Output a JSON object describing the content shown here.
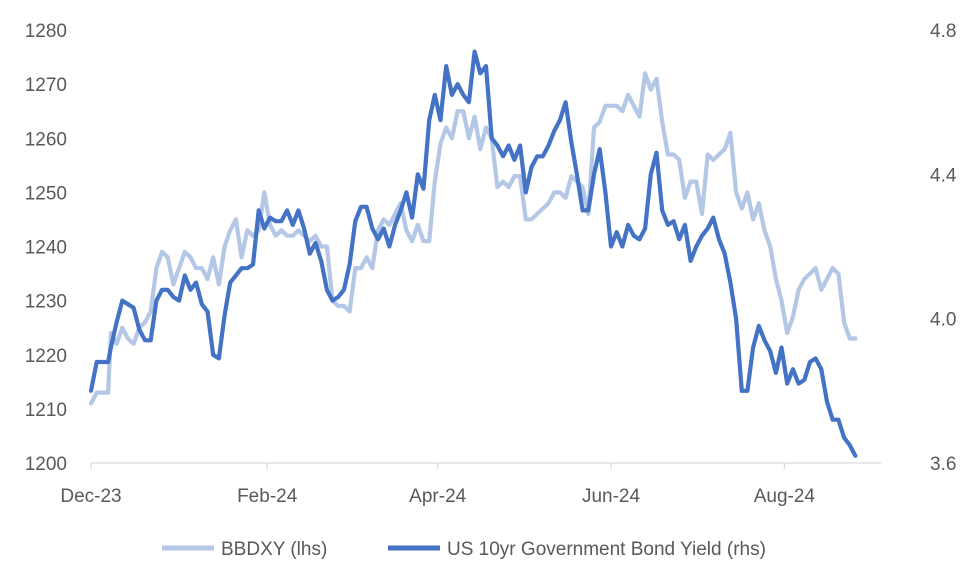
{
  "chart_data": {
    "type": "line",
    "y_left": {
      "min": 1200,
      "max": 1280,
      "ticks": [
        1200,
        1210,
        1220,
        1230,
        1240,
        1250,
        1260,
        1270,
        1280
      ],
      "labels": [
        "1200",
        "1210",
        "1220",
        "1230",
        "1240",
        "1250",
        "1260",
        "1270",
        "1280"
      ]
    },
    "y_right": {
      "min": 3.6,
      "max": 4.8,
      "ticks": [
        3.6,
        4.0,
        4.4,
        4.8
      ],
      "labels": [
        "3.6",
        "4.0",
        "4.4",
        "4.8"
      ]
    },
    "x_axis": {
      "start": "2023-12-01",
      "end": "2024-09-04",
      "ticks": [
        "2023-12-01",
        "2024-02-01",
        "2024-04-01",
        "2024-06-01",
        "2024-08-01"
      ],
      "labels": [
        "Dec-23",
        "Feb-24",
        "Apr-24",
        "Jun-24",
        "Aug-24"
      ]
    },
    "grid": false,
    "legend_position": "bottom",
    "series": [
      {
        "name": "BBDXY (lhs)",
        "axis": "left",
        "color": "#B4C7E7",
        "points": [
          [
            "2023-12-01",
            1211
          ],
          [
            "2023-12-03",
            1213
          ],
          [
            "2023-12-05",
            1213
          ],
          [
            "2023-12-07",
            1213
          ],
          [
            "2023-12-08",
            1224
          ],
          [
            "2023-12-10",
            1222
          ],
          [
            "2023-12-12",
            1225
          ],
          [
            "2023-12-14",
            1223
          ],
          [
            "2023-12-16",
            1222
          ],
          [
            "2023-12-18",
            1225
          ],
          [
            "2023-12-20",
            1226
          ],
          [
            "2023-12-22",
            1228
          ],
          [
            "2023-12-24",
            1236
          ],
          [
            "2023-12-26",
            1239
          ],
          [
            "2023-12-28",
            1238
          ],
          [
            "2023-12-30",
            1233
          ],
          [
            "2024-01-01",
            1236
          ],
          [
            "2024-01-03",
            1239
          ],
          [
            "2024-01-05",
            1238
          ],
          [
            "2024-01-07",
            1236
          ],
          [
            "2024-01-09",
            1236
          ],
          [
            "2024-01-11",
            1234
          ],
          [
            "2024-01-13",
            1238
          ],
          [
            "2024-01-15",
            1233
          ],
          [
            "2024-01-17",
            1240
          ],
          [
            "2024-01-19",
            1243
          ],
          [
            "2024-01-21",
            1245
          ],
          [
            "2024-01-23",
            1238
          ],
          [
            "2024-01-25",
            1243
          ],
          [
            "2024-01-27",
            1242
          ],
          [
            "2024-01-29",
            1243
          ],
          [
            "2024-01-31",
            1250
          ],
          [
            "2024-02-02",
            1244
          ],
          [
            "2024-02-04",
            1242
          ],
          [
            "2024-02-06",
            1243
          ],
          [
            "2024-02-08",
            1242
          ],
          [
            "2024-02-10",
            1242
          ],
          [
            "2024-02-12",
            1243
          ],
          [
            "2024-02-14",
            1242
          ],
          [
            "2024-02-16",
            1241
          ],
          [
            "2024-02-18",
            1242
          ],
          [
            "2024-02-20",
            1240
          ],
          [
            "2024-02-22",
            1240
          ],
          [
            "2024-02-24",
            1230
          ],
          [
            "2024-02-26",
            1229
          ],
          [
            "2024-02-28",
            1229
          ],
          [
            "2024-03-01",
            1228
          ],
          [
            "2024-03-03",
            1236
          ],
          [
            "2024-03-05",
            1236
          ],
          [
            "2024-03-07",
            1238
          ],
          [
            "2024-03-09",
            1236
          ],
          [
            "2024-03-11",
            1243
          ],
          [
            "2024-03-13",
            1245
          ],
          [
            "2024-03-15",
            1244
          ],
          [
            "2024-03-17",
            1246
          ],
          [
            "2024-03-19",
            1248
          ],
          [
            "2024-03-21",
            1243
          ],
          [
            "2024-03-23",
            1241
          ],
          [
            "2024-03-25",
            1244
          ],
          [
            "2024-03-27",
            1241
          ],
          [
            "2024-03-29",
            1241
          ],
          [
            "2024-03-31",
            1252
          ],
          [
            "2024-04-02",
            1259
          ],
          [
            "2024-04-04",
            1262
          ],
          [
            "2024-04-06",
            1260
          ],
          [
            "2024-04-08",
            1265
          ],
          [
            "2024-04-10",
            1265
          ],
          [
            "2024-04-12",
            1260
          ],
          [
            "2024-04-14",
            1264
          ],
          [
            "2024-04-16",
            1258
          ],
          [
            "2024-04-18",
            1262
          ],
          [
            "2024-04-20",
            1260
          ],
          [
            "2024-04-22",
            1251
          ],
          [
            "2024-04-24",
            1252
          ],
          [
            "2024-04-26",
            1251
          ],
          [
            "2024-04-28",
            1253
          ],
          [
            "2024-04-30",
            1253
          ],
          [
            "2024-05-02",
            1245
          ],
          [
            "2024-05-04",
            1245
          ],
          [
            "2024-05-06",
            1246
          ],
          [
            "2024-05-08",
            1247
          ],
          [
            "2024-05-10",
            1248
          ],
          [
            "2024-05-12",
            1250
          ],
          [
            "2024-05-14",
            1250
          ],
          [
            "2024-05-16",
            1249
          ],
          [
            "2024-05-18",
            1253
          ],
          [
            "2024-05-20",
            1252
          ],
          [
            "2024-05-22",
            1251
          ],
          [
            "2024-05-24",
            1246
          ],
          [
            "2024-05-26",
            1262
          ],
          [
            "2024-05-28",
            1263
          ],
          [
            "2024-05-30",
            1266
          ],
          [
            "2024-06-01",
            1266
          ],
          [
            "2024-06-03",
            1266
          ],
          [
            "2024-06-05",
            1265
          ],
          [
            "2024-06-07",
            1268
          ],
          [
            "2024-06-09",
            1266
          ],
          [
            "2024-06-11",
            1264
          ],
          [
            "2024-06-13",
            1272
          ],
          [
            "2024-06-15",
            1269
          ],
          [
            "2024-06-17",
            1271
          ],
          [
            "2024-06-19",
            1263
          ],
          [
            "2024-06-21",
            1257
          ],
          [
            "2024-06-23",
            1257
          ],
          [
            "2024-06-25",
            1256
          ],
          [
            "2024-06-27",
            1249
          ],
          [
            "2024-06-29",
            1252
          ],
          [
            "2024-07-01",
            1252
          ],
          [
            "2024-07-03",
            1246
          ],
          [
            "2024-07-05",
            1257
          ],
          [
            "2024-07-07",
            1256
          ],
          [
            "2024-07-09",
            1257
          ],
          [
            "2024-07-11",
            1258
          ],
          [
            "2024-07-13",
            1261
          ],
          [
            "2024-07-15",
            1250
          ],
          [
            "2024-07-17",
            1247
          ],
          [
            "2024-07-19",
            1250
          ],
          [
            "2024-07-21",
            1245
          ],
          [
            "2024-07-23",
            1248
          ],
          [
            "2024-07-25",
            1243
          ],
          [
            "2024-07-27",
            1240
          ],
          [
            "2024-07-29",
            1234
          ],
          [
            "2024-07-31",
            1230
          ],
          [
            "2024-08-02",
            1224
          ],
          [
            "2024-08-04",
            1227
          ],
          [
            "2024-08-06",
            1232
          ],
          [
            "2024-08-08",
            1234
          ],
          [
            "2024-08-10",
            1235
          ],
          [
            "2024-08-12",
            1236
          ],
          [
            "2024-08-14",
            1232
          ],
          [
            "2024-08-16",
            1234
          ],
          [
            "2024-08-18",
            1236
          ],
          [
            "2024-08-20",
            1235
          ],
          [
            "2024-08-22",
            1226
          ],
          [
            "2024-08-24",
            1223
          ],
          [
            "2024-08-26",
            1223
          ]
        ]
      },
      {
        "name": "US 10yr Government Bond Yield (rhs)",
        "axis": "right",
        "color": "#4472C4",
        "points": [
          [
            "2023-12-01",
            3.8
          ],
          [
            "2023-12-03",
            3.88
          ],
          [
            "2023-12-05",
            3.88
          ],
          [
            "2023-12-07",
            3.88
          ],
          [
            "2023-12-08",
            3.92
          ],
          [
            "2023-12-10",
            3.99
          ],
          [
            "2023-12-12",
            4.05
          ],
          [
            "2023-12-14",
            4.04
          ],
          [
            "2023-12-16",
            4.03
          ],
          [
            "2023-12-18",
            3.97
          ],
          [
            "2023-12-20",
            3.94
          ],
          [
            "2023-12-22",
            3.94
          ],
          [
            "2023-12-24",
            4.05
          ],
          [
            "2023-12-26",
            4.08
          ],
          [
            "2023-12-28",
            4.08
          ],
          [
            "2023-12-30",
            4.06
          ],
          [
            "2024-01-01",
            4.05
          ],
          [
            "2024-01-03",
            4.12
          ],
          [
            "2024-01-05",
            4.08
          ],
          [
            "2024-01-07",
            4.1
          ],
          [
            "2024-01-09",
            4.04
          ],
          [
            "2024-01-11",
            4.02
          ],
          [
            "2024-01-13",
            3.9
          ],
          [
            "2024-01-15",
            3.89
          ],
          [
            "2024-01-17",
            4.01
          ],
          [
            "2024-01-19",
            4.1
          ],
          [
            "2024-01-21",
            4.12
          ],
          [
            "2024-01-23",
            4.14
          ],
          [
            "2024-01-25",
            4.14
          ],
          [
            "2024-01-27",
            4.15
          ],
          [
            "2024-01-29",
            4.3
          ],
          [
            "2024-01-31",
            4.25
          ],
          [
            "2024-02-02",
            4.28
          ],
          [
            "2024-02-04",
            4.27
          ],
          [
            "2024-02-06",
            4.27
          ],
          [
            "2024-02-08",
            4.3
          ],
          [
            "2024-02-10",
            4.26
          ],
          [
            "2024-02-12",
            4.3
          ],
          [
            "2024-02-14",
            4.25
          ],
          [
            "2024-02-16",
            4.18
          ],
          [
            "2024-02-18",
            4.21
          ],
          [
            "2024-02-20",
            4.16
          ],
          [
            "2024-02-22",
            4.08
          ],
          [
            "2024-02-24",
            4.05
          ],
          [
            "2024-02-26",
            4.06
          ],
          [
            "2024-02-28",
            4.08
          ],
          [
            "2024-03-01",
            4.15
          ],
          [
            "2024-03-03",
            4.27
          ],
          [
            "2024-03-05",
            4.31
          ],
          [
            "2024-03-07",
            4.31
          ],
          [
            "2024-03-09",
            4.25
          ],
          [
            "2024-03-11",
            4.22
          ],
          [
            "2024-03-13",
            4.25
          ],
          [
            "2024-03-15",
            4.2
          ],
          [
            "2024-03-17",
            4.26
          ],
          [
            "2024-03-19",
            4.3
          ],
          [
            "2024-03-21",
            4.35
          ],
          [
            "2024-03-23",
            4.28
          ],
          [
            "2024-03-25",
            4.4
          ],
          [
            "2024-03-27",
            4.36
          ],
          [
            "2024-03-29",
            4.55
          ],
          [
            "2024-03-31",
            4.62
          ],
          [
            "2024-04-02",
            4.55
          ],
          [
            "2024-04-04",
            4.7
          ],
          [
            "2024-04-06",
            4.62
          ],
          [
            "2024-04-08",
            4.65
          ],
          [
            "2024-04-10",
            4.62
          ],
          [
            "2024-04-12",
            4.6
          ],
          [
            "2024-04-14",
            4.74
          ],
          [
            "2024-04-16",
            4.68
          ],
          [
            "2024-04-18",
            4.7
          ],
          [
            "2024-04-20",
            4.5
          ],
          [
            "2024-04-22",
            4.48
          ],
          [
            "2024-04-24",
            4.45
          ],
          [
            "2024-04-26",
            4.48
          ],
          [
            "2024-04-28",
            4.44
          ],
          [
            "2024-04-30",
            4.48
          ],
          [
            "2024-05-02",
            4.35
          ],
          [
            "2024-05-04",
            4.42
          ],
          [
            "2024-05-06",
            4.45
          ],
          [
            "2024-05-08",
            4.45
          ],
          [
            "2024-05-10",
            4.48
          ],
          [
            "2024-05-12",
            4.52
          ],
          [
            "2024-05-14",
            4.55
          ],
          [
            "2024-05-16",
            4.6
          ],
          [
            "2024-05-18",
            4.49
          ],
          [
            "2024-05-20",
            4.4
          ],
          [
            "2024-05-22",
            4.3
          ],
          [
            "2024-05-24",
            4.3
          ],
          [
            "2024-05-26",
            4.4
          ],
          [
            "2024-05-28",
            4.47
          ],
          [
            "2024-05-30",
            4.35
          ],
          [
            "2024-06-01",
            4.2
          ],
          [
            "2024-06-03",
            4.24
          ],
          [
            "2024-06-05",
            4.2
          ],
          [
            "2024-06-07",
            4.26
          ],
          [
            "2024-06-09",
            4.23
          ],
          [
            "2024-06-11",
            4.22
          ],
          [
            "2024-06-13",
            4.25
          ],
          [
            "2024-06-15",
            4.4
          ],
          [
            "2024-06-17",
            4.46
          ],
          [
            "2024-06-19",
            4.3
          ],
          [
            "2024-06-21",
            4.26
          ],
          [
            "2024-06-23",
            4.27
          ],
          [
            "2024-06-25",
            4.22
          ],
          [
            "2024-06-27",
            4.26
          ],
          [
            "2024-06-29",
            4.16
          ],
          [
            "2024-07-01",
            4.2
          ],
          [
            "2024-07-03",
            4.23
          ],
          [
            "2024-07-05",
            4.25
          ],
          [
            "2024-07-07",
            4.28
          ],
          [
            "2024-07-09",
            4.22
          ],
          [
            "2024-07-11",
            4.18
          ],
          [
            "2024-07-13",
            4.1
          ],
          [
            "2024-07-15",
            4.0
          ],
          [
            "2024-07-17",
            3.8
          ],
          [
            "2024-07-19",
            3.8
          ],
          [
            "2024-07-21",
            3.92
          ],
          [
            "2024-07-23",
            3.98
          ],
          [
            "2024-07-25",
            3.94
          ],
          [
            "2024-07-27",
            3.91
          ],
          [
            "2024-07-29",
            3.85
          ],
          [
            "2024-07-31",
            3.92
          ],
          [
            "2024-08-02",
            3.82
          ],
          [
            "2024-08-04",
            3.86
          ],
          [
            "2024-08-06",
            3.82
          ],
          [
            "2024-08-08",
            3.83
          ],
          [
            "2024-08-10",
            3.88
          ],
          [
            "2024-08-12",
            3.89
          ],
          [
            "2024-08-14",
            3.86
          ],
          [
            "2024-08-16",
            3.77
          ],
          [
            "2024-08-18",
            3.72
          ],
          [
            "2024-08-20",
            3.72
          ],
          [
            "2024-08-22",
            3.67
          ],
          [
            "2024-08-24",
            3.65
          ],
          [
            "2024-08-26",
            3.62
          ]
        ]
      }
    ]
  }
}
